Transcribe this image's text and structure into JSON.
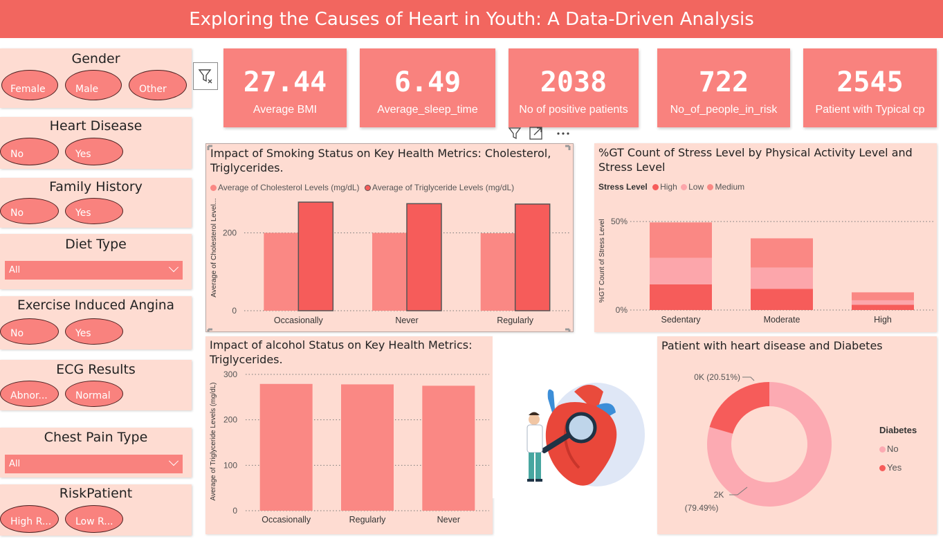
{
  "header": {
    "title": "Exploring the Causes of Heart in Youth: A Data-Driven Analysis"
  },
  "slicers": {
    "gender": {
      "title": "Gender",
      "options": [
        "Female",
        "Male",
        "Other"
      ]
    },
    "heart_disease": {
      "title": "Heart Disease",
      "options": [
        "No",
        "Yes"
      ]
    },
    "family_history": {
      "title": "Family History",
      "options": [
        "No",
        "Yes"
      ]
    },
    "diet_type": {
      "title": "Diet Type",
      "value": "All"
    },
    "exercise_angina": {
      "title": "Exercise Induced Angina",
      "options": [
        "No",
        "Yes"
      ]
    },
    "ecg": {
      "title": "ECG Results",
      "options": [
        "Abnor...",
        "Normal"
      ]
    },
    "chest_pain": {
      "title": "Chest Pain Type",
      "value": "All"
    },
    "risk": {
      "title": "RiskPatient",
      "options": [
        "High R...",
        "Low R..."
      ]
    }
  },
  "kpis": [
    {
      "value": "27.44",
      "label": "Average BMI"
    },
    {
      "value": "6.49",
      "label": "Average_sleep_time"
    },
    {
      "value": "2038",
      "label": "No of positive patients"
    },
    {
      "value": "722",
      "label": "No_of_people_in_risk"
    },
    {
      "value": "2545",
      "label": "Patient with Typical cp"
    }
  ],
  "colors": {
    "banner": "#f2665f",
    "kpi": "#f9827e",
    "panel": "#fedcd2",
    "bar_light": "#fa8884",
    "bar_dark": "#f65c5a",
    "low": "#fca6ab",
    "pie_no": "#fcaab2",
    "pie_yes": "#f65c5a"
  },
  "icons": {
    "clear_filter": "funnel-clear-icon",
    "toolbar": [
      "filter-icon",
      "focus-mode-icon",
      "more-options-icon"
    ],
    "illustration": "doctor-heart-illustration"
  },
  "chart_data": [
    {
      "type": "bar",
      "title": "Impact of Smoking Status on Key Health Metrics: Cholesterol, Triglycerides.",
      "categories": [
        "Occasionally",
        "Never",
        "Regularly"
      ],
      "series": [
        {
          "name": "Average of Cholesterol Levels (mg/dL)",
          "values": [
            200,
            200,
            199
          ]
        },
        {
          "name": "Average of Triglyceride Levels (mg/dL)",
          "values": [
            279,
            275,
            274
          ]
        }
      ],
      "ylabel": "Average of Cholesterol Level...",
      "yticks": [
        "0",
        "200"
      ],
      "ylim": [
        0,
        320
      ],
      "grid": true
    },
    {
      "type": "bar",
      "title": "%GT Count of Stress Level by Physical Activity Level and Stress Level",
      "legend_title": "Stress Level",
      "categories": [
        "Sedentary",
        "Moderate",
        "High"
      ],
      "series": [
        {
          "name": "High",
          "values": [
            14.5,
            12,
            3
          ]
        },
        {
          "name": "Low",
          "values": [
            15,
            12,
            2.5
          ]
        },
        {
          "name": "Medium",
          "values": [
            20,
            16.5,
            4.5
          ]
        }
      ],
      "stacked": true,
      "ylabel": "%GT Count of Stress Level",
      "yticks": [
        "0%",
        "50%"
      ],
      "ylim": [
        0,
        52
      ],
      "grid": true
    },
    {
      "type": "bar",
      "title": "Impact of alcohol Status on Key Health Metrics: Triglycerides.",
      "categories": [
        "Occasionally",
        "Regularly",
        "Never"
      ],
      "values": [
        279,
        278,
        275
      ],
      "ylabel": "Average of Triglyceride Levels (mg/dL)",
      "yticks": [
        "0",
        "100",
        "200",
        "300"
      ],
      "ylim": [
        0,
        300
      ],
      "grid": true
    },
    {
      "type": "pie",
      "title": "Patient with heart disease and Diabetes",
      "legend_title": "Diabetes",
      "slices": [
        {
          "name": "No",
          "value": 79.49,
          "label": "2K",
          "pct_label": "(79.49%)"
        },
        {
          "name": "Yes",
          "value": 20.51,
          "label": "0K (20.51%)"
        }
      ],
      "donut": true
    }
  ]
}
